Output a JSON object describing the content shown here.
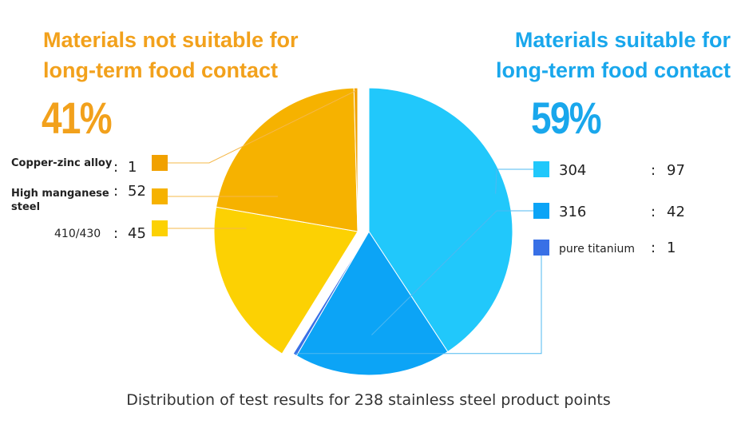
{
  "headings": {
    "not_suitable": [
      "Materials not suitable for",
      "long-term food contact"
    ],
    "suitable": [
      "Materials suitable for",
      "long-term food contact"
    ]
  },
  "percentages": {
    "not_suitable": "41%",
    "suitable": "59%"
  },
  "caption": "Distribution of test results for 238 stainless steel product points",
  "chart_data": {
    "type": "pie",
    "total": 238,
    "slices": [
      {
        "name": "304",
        "value": 97,
        "group": "suitable",
        "color": "#21c8fb"
      },
      {
        "name": "316",
        "value": 42,
        "group": "suitable",
        "color": "#0ca4f6"
      },
      {
        "name": "pure titanium",
        "value": 1,
        "group": "suitable",
        "color": "#3870e6"
      },
      {
        "name": "410/430",
        "value": 45,
        "group": "not_suitable",
        "color": "#fcd103"
      },
      {
        "name": "High manganese steel",
        "value": 52,
        "group": "not_suitable",
        "color": "#f6b200"
      },
      {
        "name": "Copper-zinc  alloy",
        "value": 1,
        "group": "not_suitable",
        "color": "#f1a100"
      }
    ],
    "colors": {
      "not_suitable_text": "#f2a11c",
      "suitable_text": "#19a7ec",
      "leader_left": "#f5b84a",
      "leader_right": "#4fb8f0"
    }
  }
}
